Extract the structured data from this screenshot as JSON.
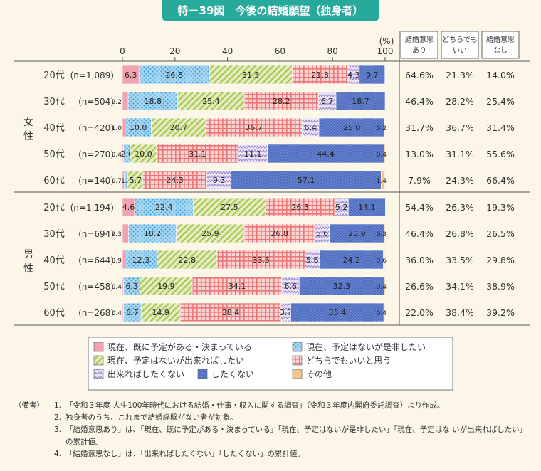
{
  "title": "特－39図　今後の結婚願望（独身者）",
  "chart_data": {
    "type": "bar",
    "orientation": "horizontal",
    "stacked": true,
    "unit_label": "(%)",
    "xlim": [
      0,
      100
    ],
    "x_ticks": [
      "0",
      "20",
      "40",
      "60",
      "80",
      "100"
    ],
    "groups": [
      {
        "name": "女性",
        "rows": [
          {
            "age": "20代",
            "n": "(n=1,089)",
            "values": [
              6.3,
              26.8,
              31.5,
              21.3,
              4.3,
              9.7,
              0
            ],
            "labels": [
              "6.3",
              "26.8",
              "31.5",
              "21.3",
              "4.3",
              "9.7",
              ""
            ],
            "summary": [
              "64.6%",
              "21.3%",
              "14.0%"
            ]
          },
          {
            "age": "30代",
            "n": "(n=504)",
            "values": [
              2.2,
              18.8,
              25.4,
              28.2,
              6.7,
              18.7,
              0
            ],
            "labels": [
              "2.2",
              "18.8",
              "25.4",
              "28.2",
              "6.7",
              "18.7",
              ""
            ],
            "summary": [
              "46.4%",
              "28.2%",
              "25.4%"
            ]
          },
          {
            "age": "40代",
            "n": "(n=420)",
            "values": [
              1.0,
              10.0,
              20.7,
              36.7,
              6.4,
              25.0,
              0.2
            ],
            "labels": [
              "1.0",
              "10.0",
              "20.7",
              "36.7",
              "6.4",
              "25.0",
              "0.2"
            ],
            "summary": [
              "31.7%",
              "36.7%",
              "31.4%"
            ]
          },
          {
            "age": "50代",
            "n": "(n=270)",
            "values": [
              0.4,
              2.6,
              10.0,
              31.1,
              11.1,
              44.4,
              0.4
            ],
            "labels": [
              "0.4",
              "2.6",
              "10.0",
              "31.1",
              "11.1",
              "44.4",
              "0.4"
            ],
            "summary": [
              "13.0%",
              "31.1%",
              "55.6%"
            ]
          },
          {
            "age": "60代",
            "n": "(n=140)",
            "values": [
              0.7,
              1.4,
              5.7,
              24.3,
              9.3,
              57.1,
              1.4
            ],
            "labels": [
              "0.7",
              "1.4",
              "5.7",
              "24.3",
              "9.3",
              "57.1",
              "1.4"
            ],
            "summary": [
              "7.9%",
              "24.3%",
              "66.4%"
            ]
          }
        ]
      },
      {
        "name": "男性",
        "rows": [
          {
            "age": "20代",
            "n": "(n=1,194)",
            "values": [
              4.6,
              22.4,
              27.5,
              26.3,
              5.2,
              14.1,
              0
            ],
            "labels": [
              "4.6",
              "22.4",
              "27.5",
              "26.3",
              "5.2",
              "14.1",
              ""
            ],
            "summary": [
              "54.4%",
              "26.3%",
              "19.3%"
            ]
          },
          {
            "age": "30代",
            "n": "(n=694)",
            "values": [
              2.3,
              18.2,
              25.9,
              26.8,
              5.6,
              20.9,
              0.3
            ],
            "labels": [
              "2.3",
              "18.2",
              "25.9",
              "26.8",
              "5.6",
              "20.9",
              "0.3"
            ],
            "summary": [
              "46.4%",
              "26.8%",
              "26.5%"
            ]
          },
          {
            "age": "40代",
            "n": "(n=644)",
            "values": [
              0.9,
              12.3,
              22.8,
              33.5,
              5.6,
              24.2,
              0.6
            ],
            "labels": [
              "0.9",
              "12.3",
              "22.8",
              "33.5",
              "5.6",
              "24.2",
              "0.6"
            ],
            "summary": [
              "36.0%",
              "33.5%",
              "29.8%"
            ]
          },
          {
            "age": "50代",
            "n": "(n=458)",
            "values": [
              0.4,
              6.3,
              19.9,
              34.1,
              6.6,
              32.3,
              0.4
            ],
            "labels": [
              "0.4",
              "6.3",
              "19.9",
              "34.1",
              "6.6",
              "32.3",
              "0.4"
            ],
            "summary": [
              "26.6%",
              "34.1%",
              "38.9%"
            ]
          },
          {
            "age": "60代",
            "n": "(n=268)",
            "values": [
              0.4,
              6.7,
              14.9,
              38.4,
              3.7,
              35.4,
              0.4
            ],
            "labels": [
              "0.4",
              "6.7",
              "14.9",
              "38.4",
              "3.7",
              "35.4",
              "0.4"
            ],
            "summary": [
              "22.0%",
              "38.4%",
              "39.2%"
            ]
          }
        ]
      }
    ],
    "summary_headers": [
      [
        "結婚意思",
        "あり"
      ],
      [
        "どちらでも",
        "いい"
      ],
      [
        "結婚意思",
        "なし"
      ]
    ],
    "series": [
      {
        "name": "現在、既に予定がある・決まっている",
        "color": "#f2a3b2",
        "pattern": "solid"
      },
      {
        "name": "現在、予定はないが是非したい",
        "color": "#7fc3e9",
        "pattern": "dots"
      },
      {
        "name": "現在、予定はないが出来ればしたい",
        "color": "#c9dd8a",
        "pattern": "diagonal"
      },
      {
        "name": "どちらでもいいと思う",
        "color": "#f08a8a",
        "pattern": "grid"
      },
      {
        "name": "出来ればしたくない",
        "color": "#c4b6e0",
        "pattern": "zigzag"
      },
      {
        "name": "したくない",
        "color": "#5b77c7",
        "pattern": "dense-dots"
      },
      {
        "name": "その他",
        "color": "#f7c48a",
        "pattern": "solid"
      }
    ],
    "legend_position": "bottom"
  },
  "notes": {
    "head": "（備考）",
    "items": [
      {
        "num": "1.",
        "text": "「令和３年度 人生100年時代における結婚・仕事・収入に関する調査」（令和３年度内閣府委託調査）より作成。"
      },
      {
        "num": "2.",
        "text": "独身者のうち、これまで結婚経験がない者が対象。"
      },
      {
        "num": "3.",
        "text": "「結婚意思あり」は、「現在、既に予定がある・決まっている」「現在、予定はないが是非したい」「現在、予定はな いが出来ればしたい」の累計値。"
      },
      {
        "num": "4.",
        "text": "「結婚意思なし」は、「出来ればしたくない」「したくない」の累計値。"
      }
    ]
  }
}
